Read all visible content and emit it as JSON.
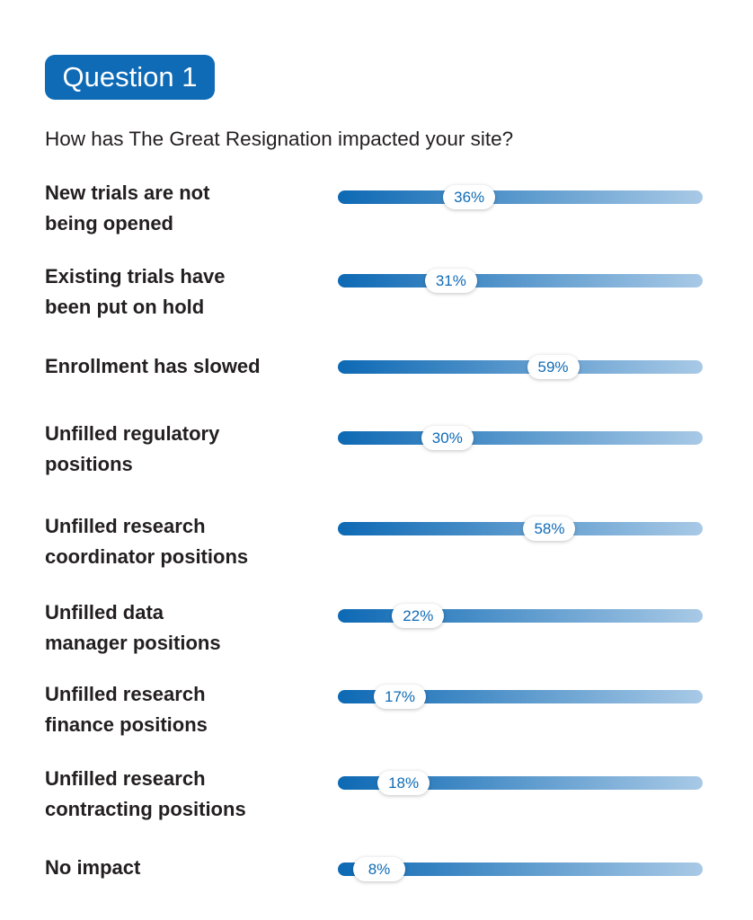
{
  "header": {
    "badge_label": "Question 1"
  },
  "question_text": "How has The Great Resignation impacted your site?",
  "colors": {
    "accent": "#0f6bb6",
    "bar_start": "#0d69b4",
    "bar_end": "#a8c9e6",
    "text": "#231f20"
  },
  "chart_data": {
    "type": "bar",
    "orientation": "horizontal",
    "title": "How has The Great Resignation impacted your site?",
    "categories": [
      "New trials are not\nbeing opened",
      "Existing trials have\nbeen put on hold",
      "Enrollment has slowed",
      "Unfilled regulatory\npositions",
      "Unfilled research\ncoordinator positions",
      "Unfilled data\nmanager positions",
      "Unfilled research\nfinance positions",
      "Unfilled research\ncontracting positions",
      "No impact"
    ],
    "values": [
      36,
      31,
      59,
      30,
      58,
      22,
      17,
      18,
      8
    ],
    "data_labels": [
      "36%",
      "31%",
      "59%",
      "30%",
      "58%",
      "22%",
      "17%",
      "18%",
      "8%"
    ],
    "xlim": [
      0,
      100
    ],
    "unit": "%",
    "grid": false,
    "legend": "none"
  }
}
